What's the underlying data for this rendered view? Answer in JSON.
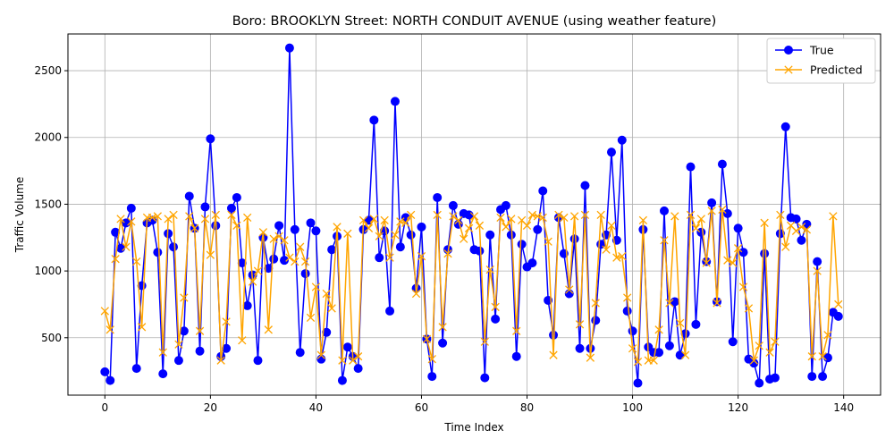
{
  "chart_data": {
    "type": "line",
    "title": "Boro: BROOKLYN Street: NORTH CONDUIT AVENUE (using weather feature)",
    "xlabel": "Time Index",
    "ylabel": "Traffic Volume",
    "xlim": [
      -7,
      147
    ],
    "ylim": [
      70,
      2775
    ],
    "xticks": [
      0,
      20,
      40,
      60,
      80,
      100,
      120,
      140
    ],
    "yticks": [
      500,
      1000,
      1500,
      2000,
      2500
    ],
    "grid": true,
    "legend_position": "upper right",
    "series": [
      {
        "name": "True",
        "color": "#0000ff",
        "marker": "circle",
        "values": [
          245,
          180,
          1290,
          1170,
          1360,
          1470,
          270,
          890,
          1360,
          1380,
          1140,
          230,
          1280,
          1180,
          330,
          550,
          1560,
          1320,
          400,
          1480,
          1990,
          1340,
          360,
          420,
          1470,
          1550,
          1060,
          740,
          970,
          330,
          1250,
          1020,
          1090,
          1340,
          1080,
          2670,
          1310,
          390,
          980,
          1360,
          1300,
          340,
          540,
          1160,
          1260,
          180,
          430,
          360,
          270,
          1310,
          1380,
          2130,
          1100,
          1300,
          700,
          2270,
          1180,
          1400,
          1270,
          870,
          1330,
          490,
          210,
          1550,
          460,
          1160,
          1490,
          1350,
          1430,
          1420,
          1160,
          1150,
          200,
          1270,
          640,
          1460,
          1490,
          1270,
          360,
          1200,
          1030,
          1060,
          1310,
          1600,
          780,
          520,
          1400,
          1130,
          830,
          1240,
          420,
          1640,
          420,
          630,
          1200,
          1270,
          1890,
          1230,
          1980,
          700,
          550,
          160,
          1310,
          430,
          390,
          390,
          1450,
          440,
          770,
          370,
          530,
          1780,
          600,
          1290,
          1070,
          1510,
          770,
          1800,
          1430,
          470,
          1320,
          1140,
          340,
          310,
          160,
          1130,
          190,
          200,
          1280,
          2080,
          1400,
          1390,
          1230,
          1350,
          210,
          1070,
          210,
          350,
          690,
          660
        ]
      },
      {
        "name": "Predicted",
        "color": "#ffa500",
        "marker": "x",
        "values": [
          700,
          560,
          1090,
          1390,
          1180,
          1370,
          1070,
          580,
          1400,
          1400,
          1410,
          390,
          1390,
          1420,
          450,
          800,
          1410,
          1320,
          550,
          1390,
          1120,
          1420,
          330,
          620,
          1420,
          1340,
          480,
          1400,
          920,
          1000,
          1290,
          560,
          1240,
          1260,
          1230,
          1100,
          1070,
          1180,
          1070,
          650,
          880,
          370,
          830,
          720,
          1330,
          330,
          1280,
          330,
          360,
          1380,
          1320,
          1390,
          1260,
          1380,
          1100,
          1270,
          1370,
          1360,
          1420,
          830,
          1110,
          490,
          340,
          1420,
          580,
          1130,
          1410,
          1380,
          1240,
          1320,
          1410,
          1340,
          470,
          1010,
          730,
          1400,
          1330,
          1390,
          550,
          1380,
          1340,
          1420,
          1410,
          1400,
          1220,
          370,
          1420,
          1400,
          860,
          1410,
          600,
          1420,
          350,
          760,
          1420,
          1160,
          1340,
          1100,
          1110,
          800,
          420,
          320,
          1380,
          330,
          330,
          560,
          1230,
          760,
          1410,
          610,
          370,
          1420,
          1320,
          1390,
          1060,
          1450,
          760,
          1460,
          1080,
          1060,
          1170,
          880,
          720,
          330,
          440,
          1360,
          390,
          470,
          1420,
          1180,
          1340,
          1300,
          1330,
          1310,
          360,
          1000,
          360,
          520,
          1410,
          750
        ]
      }
    ]
  }
}
